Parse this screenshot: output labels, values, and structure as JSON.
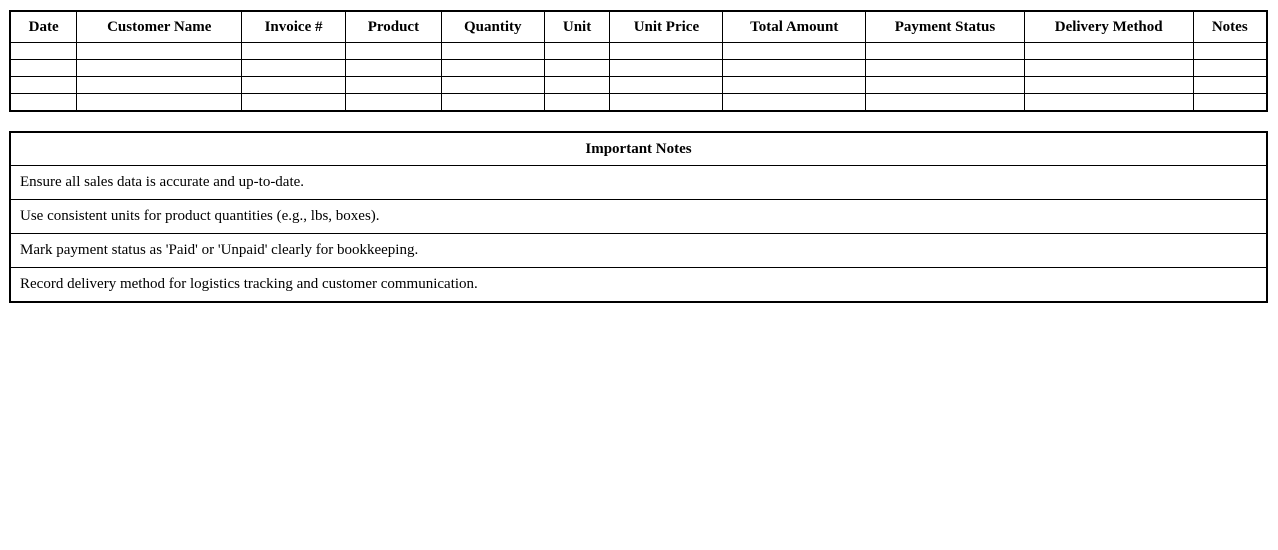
{
  "colors": {
    "background": "#ffffff",
    "border": "#000000",
    "text": "#000000"
  },
  "sales_table": {
    "columns": [
      "Date",
      "Customer Name",
      "Invoice #",
      "Product",
      "Quantity",
      "Unit",
      "Unit Price",
      "Total Amount",
      "Payment Status",
      "Delivery Method",
      "Notes"
    ],
    "rows": [
      [
        "",
        "",
        "",
        "",
        "",
        "",
        "",
        "",
        "",
        "",
        ""
      ],
      [
        "",
        "",
        "",
        "",
        "",
        "",
        "",
        "",
        "",
        "",
        ""
      ],
      [
        "",
        "",
        "",
        "",
        "",
        "",
        "",
        "",
        "",
        "",
        ""
      ],
      [
        "",
        "",
        "",
        "",
        "",
        "",
        "",
        "",
        "",
        "",
        ""
      ]
    ]
  },
  "notes_table": {
    "title": "Important Notes",
    "notes": [
      "Ensure all sales data is accurate and up-to-date.",
      "Use consistent units for product quantities (e.g., lbs, boxes).",
      "Mark payment status as 'Paid' or 'Unpaid' clearly for bookkeeping.",
      "Record delivery method for logistics tracking and customer communication."
    ]
  }
}
